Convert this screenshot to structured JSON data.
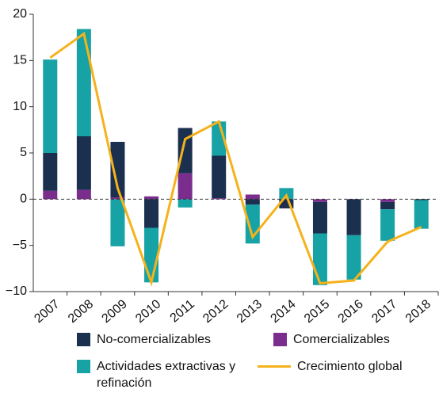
{
  "chart_data": {
    "type": "bar",
    "stacked": true,
    "categories": [
      "2007",
      "2008",
      "2009",
      "2010",
      "2011",
      "2012",
      "2013",
      "2014",
      "2015",
      "2016",
      "2017",
      "2018"
    ],
    "series": [
      {
        "name": "No-comercializables",
        "color": "#1b2f4e",
        "values": [
          4.1,
          5.8,
          6.0,
          -3.1,
          4.9,
          4.6,
          -0.6,
          -1.0,
          -3.4,
          -3.9,
          -0.8,
          -0.1
        ]
      },
      {
        "name": "Comercializables",
        "color": "#7b2d8e",
        "values": [
          0.9,
          1.0,
          0.2,
          0.3,
          2.8,
          0.1,
          0.5,
          0,
          -0.3,
          0,
          -0.3,
          0
        ]
      },
      {
        "name": "Actividades extractivas y refinación",
        "color": "#17a2a6",
        "values": [
          10.1,
          11.6,
          -5.1,
          -5.9,
          -0.9,
          3.7,
          -4.2,
          1.2,
          -5.6,
          -4.8,
          -3.4,
          -3.1
        ]
      },
      {
        "name": "Crecimiento global",
        "type": "line",
        "color": "#f5b21b",
        "values": [
          15.3,
          17.9,
          1.2,
          -9.0,
          6.5,
          8.4,
          -4.1,
          0.4,
          -9.1,
          -8.8,
          -4.6,
          -3.0
        ]
      }
    ],
    "ylim": [
      -10,
      20
    ],
    "yticks": [
      {
        "value": -10,
        "label": "−10"
      },
      {
        "value": -5,
        "label": "−5"
      },
      0,
      5,
      10,
      15,
      20
    ],
    "grid": false
  }
}
